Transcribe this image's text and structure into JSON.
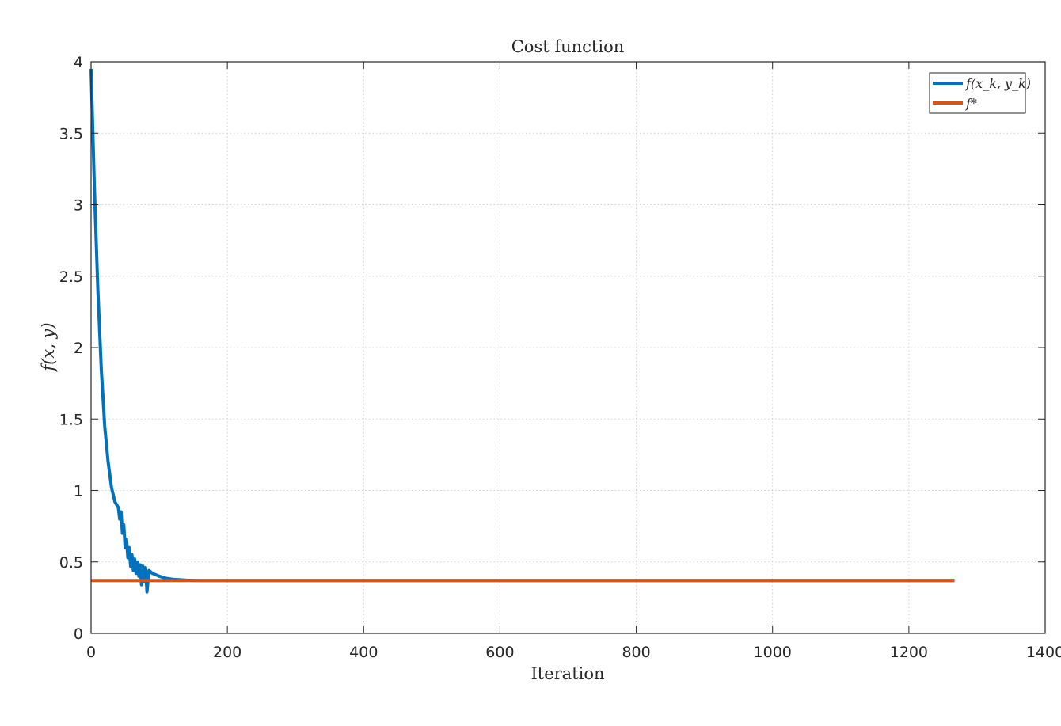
{
  "chart_data": {
    "type": "line",
    "title": "Cost function",
    "xlabel": "Iteration",
    "ylabel": "f(x, y)",
    "xlim": [
      0,
      1400
    ],
    "ylim": [
      0,
      4
    ],
    "xticks": [
      0,
      200,
      400,
      600,
      800,
      1000,
      1200,
      1400
    ],
    "xtick_labels": [
      "0",
      "200",
      "400",
      "600",
      "800",
      "1000",
      "1200",
      "1400"
    ],
    "yticks": [
      0,
      0.5,
      1,
      1.5,
      2,
      2.5,
      3,
      3.5,
      4
    ],
    "ytick_labels": [
      "0",
      "0.5",
      "1",
      "1.5",
      "2",
      "2.5",
      "3",
      "3.5",
      "4"
    ],
    "grid": true,
    "legend_position": "top-right",
    "series": [
      {
        "name": "f(x_k, y_k)",
        "color": "#0072BD",
        "x": [
          0,
          5,
          10,
          15,
          20,
          25,
          30,
          35,
          40,
          42,
          44,
          46,
          48,
          50,
          52,
          54,
          56,
          58,
          60,
          62,
          64,
          66,
          68,
          70,
          72,
          74,
          76,
          78,
          80,
          82,
          85,
          90,
          100,
          110,
          120,
          140,
          160,
          180,
          200,
          250,
          300,
          400,
          500,
          600,
          700,
          800,
          900,
          1000,
          1100,
          1200,
          1267
        ],
        "y": [
          3.95,
          3.1,
          2.4,
          1.85,
          1.45,
          1.2,
          1.02,
          0.92,
          0.88,
          0.8,
          0.85,
          0.7,
          0.76,
          0.6,
          0.66,
          0.53,
          0.6,
          0.47,
          0.55,
          0.44,
          0.52,
          0.42,
          0.5,
          0.4,
          0.48,
          0.34,
          0.47,
          0.36,
          0.46,
          0.29,
          0.44,
          0.42,
          0.4,
          0.385,
          0.378,
          0.372,
          0.37,
          0.37,
          0.37,
          0.37,
          0.37,
          0.37,
          0.37,
          0.37,
          0.37,
          0.37,
          0.37,
          0.37,
          0.37,
          0.37,
          0.37
        ]
      },
      {
        "name": "f*",
        "color": "#D95319",
        "x": [
          0,
          1267
        ],
        "y": [
          0.37,
          0.37
        ]
      }
    ]
  }
}
